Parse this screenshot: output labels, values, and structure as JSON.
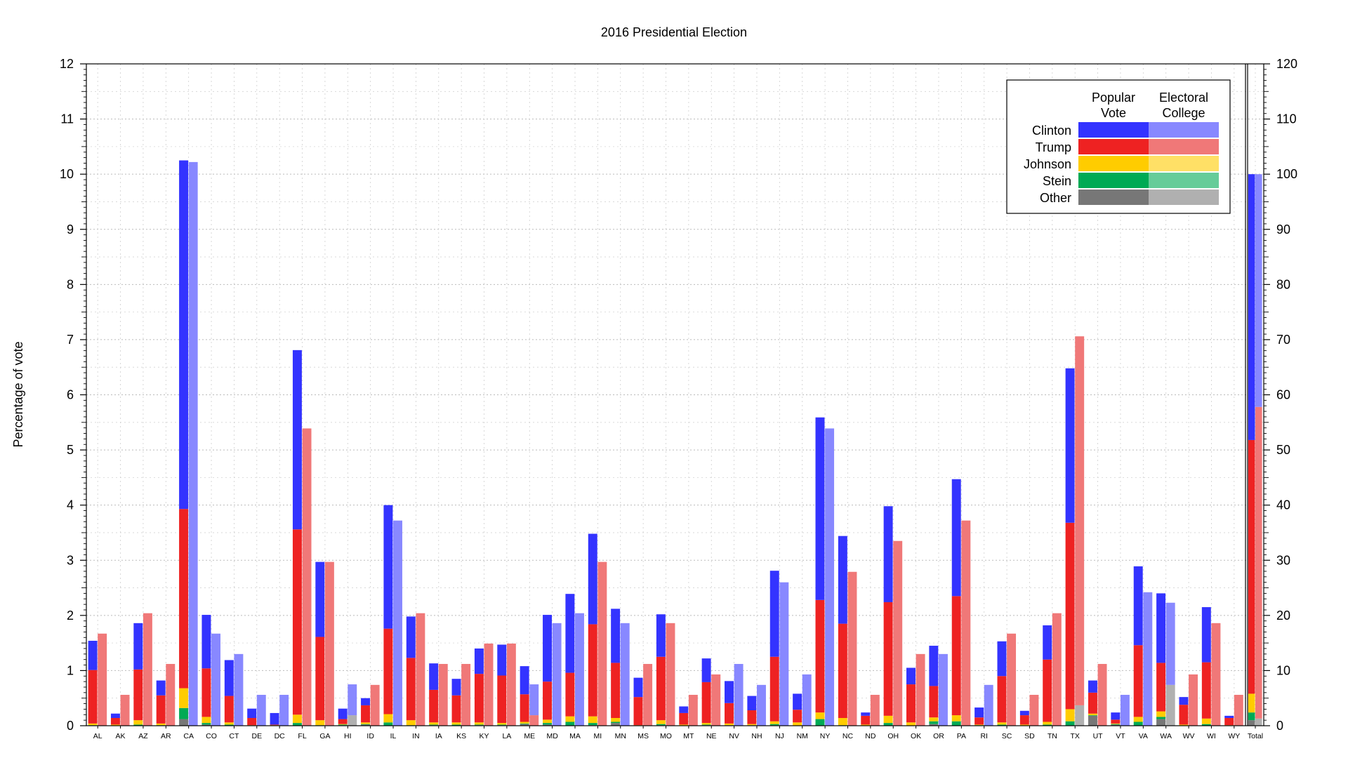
{
  "chart_data": {
    "type": "bar",
    "title": "2016 Presidential Election",
    "ylabel": "Percentage of vote",
    "ylim": [
      0,
      12
    ],
    "y2lim": [
      0,
      120
    ],
    "yticks": [
      "0",
      "1",
      "2",
      "3",
      "4",
      "5",
      "6",
      "7",
      "8",
      "9",
      "10",
      "11",
      "12"
    ],
    "y2ticks": [
      "0",
      "10",
      "20",
      "30",
      "40",
      "50",
      "60",
      "70",
      "80",
      "90",
      "100",
      "110",
      "120"
    ],
    "grid": true,
    "legend_position": "top-right",
    "legend": {
      "col1": [
        "Popular",
        "Vote"
      ],
      "col2": [
        "Electoral",
        "College"
      ],
      "rows": [
        "Clinton",
        "Trump",
        "Johnson",
        "Stein",
        "Other"
      ]
    },
    "colors": {
      "popular": {
        "Clinton": "#3333ff",
        "Trump": "#ee2222",
        "Johnson": "#ffcc00",
        "Stein": "#00aa55",
        "Other": "#777777"
      },
      "electoral": {
        "Clinton": "#8888ff",
        "Trump": "#f07878",
        "Johnson": "#ffe066",
        "Stein": "#66cc99",
        "Other": "#b0b0b0"
      }
    },
    "categories": [
      "AL",
      "AK",
      "AZ",
      "AR",
      "CA",
      "CO",
      "CT",
      "DE",
      "DC",
      "FL",
      "GA",
      "HI",
      "ID",
      "IL",
      "IN",
      "IA",
      "KS",
      "KY",
      "LA",
      "ME",
      "MD",
      "MA",
      "MI",
      "MN",
      "MS",
      "MO",
      "MT",
      "NE",
      "NV",
      "NH",
      "NJ",
      "NM",
      "NY",
      "NC",
      "ND",
      "OH",
      "OK",
      "OR",
      "PA",
      "RI",
      "SC",
      "SD",
      "TN",
      "TX",
      "UT",
      "VT",
      "VA",
      "WA",
      "WV",
      "WI",
      "WY",
      "Total"
    ],
    "popular_vote": [
      {
        "other": 0,
        "stein": 0.01,
        "johnson": 0.03,
        "trump": 0.97,
        "clinton": 0.53
      },
      {
        "other": 0,
        "stein": 0,
        "johnson": 0.02,
        "trump": 0.12,
        "clinton": 0.08
      },
      {
        "other": 0,
        "stein": 0.02,
        "johnson": 0.08,
        "trump": 0.92,
        "clinton": 0.84
      },
      {
        "other": 0,
        "stein": 0.01,
        "johnson": 0.03,
        "trump": 0.51,
        "clinton": 0.27
      },
      {
        "other": 0.12,
        "stein": 0.2,
        "johnson": 0.36,
        "trump": 3.25,
        "clinton": 6.32
      },
      {
        "other": 0.02,
        "stein": 0.03,
        "johnson": 0.11,
        "trump": 0.88,
        "clinton": 0.97
      },
      {
        "other": 0,
        "stein": 0.02,
        "johnson": 0.04,
        "trump": 0.48,
        "clinton": 0.65
      },
      {
        "other": 0,
        "stein": 0,
        "johnson": 0.01,
        "trump": 0.13,
        "clinton": 0.17
      },
      {
        "other": 0,
        "stein": 0,
        "johnson": 0.01,
        "trump": 0.01,
        "clinton": 0.21
      },
      {
        "other": 0,
        "stein": 0.05,
        "johnson": 0.15,
        "trump": 3.36,
        "clinton": 3.25
      },
      {
        "other": 0,
        "stein": 0.01,
        "johnson": 0.09,
        "trump": 1.51,
        "clinton": 1.36
      },
      {
        "other": 0.01,
        "stein": 0.01,
        "johnson": 0.01,
        "trump": 0.09,
        "clinton": 0.19
      },
      {
        "other": 0.02,
        "stein": 0.01,
        "johnson": 0.03,
        "trump": 0.31,
        "clinton": 0.13
      },
      {
        "other": 0,
        "stein": 0.06,
        "johnson": 0.15,
        "trump": 1.55,
        "clinton": 2.24
      },
      {
        "other": 0,
        "stein": 0.01,
        "johnson": 0.09,
        "trump": 1.13,
        "clinton": 0.75
      },
      {
        "other": 0.01,
        "stein": 0.01,
        "johnson": 0.04,
        "trump": 0.59,
        "clinton": 0.48
      },
      {
        "other": 0,
        "stein": 0.02,
        "johnson": 0.04,
        "trump": 0.49,
        "clinton": 0.3
      },
      {
        "other": 0.01,
        "stein": 0.01,
        "johnson": 0.04,
        "trump": 0.88,
        "clinton": 0.46
      },
      {
        "other": 0.01,
        "stein": 0.01,
        "johnson": 0.03,
        "trump": 0.86,
        "clinton": 0.56
      },
      {
        "other": 0.03,
        "stein": 0.01,
        "johnson": 0.03,
        "trump": 0.5,
        "clinton": 0.51
      },
      {
        "other": 0.02,
        "stein": 0.03,
        "johnson": 0.06,
        "trump": 0.69,
        "clinton": 1.21
      },
      {
        "other": 0,
        "stein": 0.07,
        "johnson": 0.1,
        "trump": 0.79,
        "clinton": 1.43
      },
      {
        "other": 0.01,
        "stein": 0.04,
        "johnson": 0.12,
        "trump": 1.67,
        "clinton": 1.64
      },
      {
        "other": 0.05,
        "stein": 0.02,
        "johnson": 0.07,
        "trump": 1,
        "clinton": 0.98
      },
      {
        "other": 0,
        "stein": 0,
        "johnson": 0.01,
        "trump": 0.51,
        "clinton": 0.35
      },
      {
        "other": 0.01,
        "stein": 0.02,
        "johnson": 0.07,
        "trump": 1.15,
        "clinton": 0.77
      },
      {
        "other": 0,
        "stein": 0,
        "johnson": 0.02,
        "trump": 0.21,
        "clinton": 0.12
      },
      {
        "other": 0.01,
        "stein": 0.01,
        "johnson": 0.03,
        "trump": 0.74,
        "clinton": 0.43
      },
      {
        "other": 0.01,
        "stein": 0,
        "johnson": 0.03,
        "trump": 0.37,
        "clinton": 0.4
      },
      {
        "other": 0.01,
        "stein": 0,
        "johnson": 0.02,
        "trump": 0.25,
        "clinton": 0.26
      },
      {
        "other": 0.01,
        "stein": 0.02,
        "johnson": 0.05,
        "trump": 1.17,
        "clinton": 1.56
      },
      {
        "other": 0,
        "stein": 0,
        "johnson": 0.06,
        "trump": 0.23,
        "clinton": 0.29
      },
      {
        "other": 0,
        "stein": 0.12,
        "johnson": 0.12,
        "trump": 2.04,
        "clinton": 3.31
      },
      {
        "other": 0,
        "stein": 0.01,
        "johnson": 0.13,
        "trump": 1.71,
        "clinton": 1.59
      },
      {
        "other": 0,
        "stein": 0,
        "johnson": 0.02,
        "trump": 0.16,
        "clinton": 0.06
      },
      {
        "other": 0,
        "stein": 0.05,
        "johnson": 0.13,
        "trump": 2.06,
        "clinton": 1.74
      },
      {
        "other": 0,
        "stein": 0,
        "johnson": 0.06,
        "trump": 0.69,
        "clinton": 0.3
      },
      {
        "other": 0.03,
        "stein": 0.05,
        "johnson": 0.07,
        "trump": 0.57,
        "clinton": 0.73
      },
      {
        "other": 0,
        "stein": 0.08,
        "johnson": 0.11,
        "trump": 2.16,
        "clinton": 2.12
      },
      {
        "other": 0,
        "stein": 0.01,
        "johnson": 0.01,
        "trump": 0.13,
        "clinton": 0.18
      },
      {
        "other": 0,
        "stein": 0.02,
        "johnson": 0.04,
        "trump": 0.84,
        "clinton": 0.63
      },
      {
        "other": 0,
        "stein": 0,
        "johnson": 0.02,
        "trump": 0.17,
        "clinton": 0.08
      },
      {
        "other": 0,
        "stein": 0.02,
        "johnson": 0.05,
        "trump": 1.13,
        "clinton": 0.62
      },
      {
        "other": 0,
        "stein": 0.08,
        "johnson": 0.22,
        "trump": 3.38,
        "clinton": 2.8
      },
      {
        "other": 0.18,
        "stein": 0.01,
        "johnson": 0.03,
        "trump": 0.38,
        "clinton": 0.22
      },
      {
        "other": 0.02,
        "stein": 0.01,
        "johnson": 0.01,
        "trump": 0.07,
        "clinton": 0.13
      },
      {
        "other": 0,
        "stein": 0.07,
        "johnson": 0.09,
        "trump": 1.3,
        "clinton": 1.43
      },
      {
        "other": 0.12,
        "stein": 0.04,
        "johnson": 0.1,
        "trump": 0.88,
        "clinton": 1.26
      },
      {
        "other": 0,
        "stein": 0,
        "johnson": 0.02,
        "trump": 0.36,
        "clinton": 0.14
      },
      {
        "other": 0,
        "stein": 0.03,
        "johnson": 0.1,
        "trump": 1.02,
        "clinton": 1
      },
      {
        "other": 0,
        "stein": 0,
        "johnson": 0.01,
        "trump": 0.13,
        "clinton": 0.04
      },
      {
        "other": 0.1,
        "stein": 0.14,
        "johnson": 0.34,
        "trump": 4.6,
        "clinton": 4.82
      }
    ],
    "electoral_college": [
      {
        "other": 0,
        "trump": 16.7,
        "clinton": 0
      },
      {
        "other": 0,
        "trump": 5.6,
        "clinton": 0
      },
      {
        "other": 0,
        "trump": 20.4,
        "clinton": 0
      },
      {
        "other": 0,
        "trump": 11.2,
        "clinton": 0
      },
      {
        "other": 0,
        "trump": 0,
        "clinton": 102.2
      },
      {
        "other": 0,
        "trump": 0,
        "clinton": 16.7
      },
      {
        "other": 0,
        "trump": 0,
        "clinton": 13
      },
      {
        "other": 0,
        "trump": 0,
        "clinton": 5.6
      },
      {
        "other": 0,
        "trump": 0,
        "clinton": 5.6
      },
      {
        "other": 0,
        "trump": 53.9,
        "clinton": 0
      },
      {
        "other": 0,
        "trump": 29.7,
        "clinton": 0
      },
      {
        "other": 1.9,
        "trump": 0,
        "clinton": 5.6
      },
      {
        "other": 0,
        "trump": 7.4,
        "clinton": 0
      },
      {
        "other": 0,
        "trump": 0,
        "clinton": 37.2
      },
      {
        "other": 0,
        "trump": 20.4,
        "clinton": 0
      },
      {
        "other": 0,
        "trump": 11.2,
        "clinton": 0
      },
      {
        "other": 0,
        "trump": 11.2,
        "clinton": 0
      },
      {
        "other": 0,
        "trump": 14.9,
        "clinton": 0
      },
      {
        "other": 0,
        "trump": 14.9,
        "clinton": 0
      },
      {
        "other": 0,
        "trump": 1.9,
        "clinton": 5.6
      },
      {
        "other": 0,
        "trump": 0,
        "clinton": 18.6
      },
      {
        "other": 0,
        "trump": 0,
        "clinton": 20.4
      },
      {
        "other": 0,
        "trump": 29.7,
        "clinton": 0
      },
      {
        "other": 0,
        "trump": 0,
        "clinton": 18.6
      },
      {
        "other": 0,
        "trump": 11.2,
        "clinton": 0
      },
      {
        "other": 0,
        "trump": 18.6,
        "clinton": 0
      },
      {
        "other": 0,
        "trump": 5.6,
        "clinton": 0
      },
      {
        "other": 0,
        "trump": 9.3,
        "clinton": 0
      },
      {
        "other": 0,
        "trump": 0,
        "clinton": 11.2
      },
      {
        "other": 0,
        "trump": 0,
        "clinton": 7.4
      },
      {
        "other": 0,
        "trump": 0,
        "clinton": 26
      },
      {
        "other": 0,
        "trump": 0,
        "clinton": 9.3
      },
      {
        "other": 0,
        "trump": 0,
        "clinton": 53.9
      },
      {
        "other": 0,
        "trump": 27.9,
        "clinton": 0
      },
      {
        "other": 0,
        "trump": 5.6,
        "clinton": 0
      },
      {
        "other": 0,
        "trump": 33.5,
        "clinton": 0
      },
      {
        "other": 0,
        "trump": 13,
        "clinton": 0
      },
      {
        "other": 0,
        "trump": 0,
        "clinton": 13
      },
      {
        "other": 0,
        "trump": 37.2,
        "clinton": 0
      },
      {
        "other": 0,
        "trump": 0,
        "clinton": 7.4
      },
      {
        "other": 0,
        "trump": 16.7,
        "clinton": 0
      },
      {
        "other": 0,
        "trump": 5.6,
        "clinton": 0
      },
      {
        "other": 0,
        "trump": 20.4,
        "clinton": 0
      },
      {
        "other": 3.7,
        "trump": 66.9,
        "clinton": 0
      },
      {
        "other": 0,
        "trump": 11.2,
        "clinton": 0
      },
      {
        "other": 0,
        "trump": 0,
        "clinton": 5.6
      },
      {
        "other": 0,
        "trump": 0,
        "clinton": 24.2
      },
      {
        "other": 7.4,
        "trump": 0,
        "clinton": 14.9
      },
      {
        "other": 0,
        "trump": 9.3,
        "clinton": 0
      },
      {
        "other": 0,
        "trump": 18.6,
        "clinton": 0
      },
      {
        "other": 0,
        "trump": 5.6,
        "clinton": 0
      },
      {
        "other": 1.3,
        "trump": 56.5,
        "clinton": 42.2
      }
    ]
  }
}
